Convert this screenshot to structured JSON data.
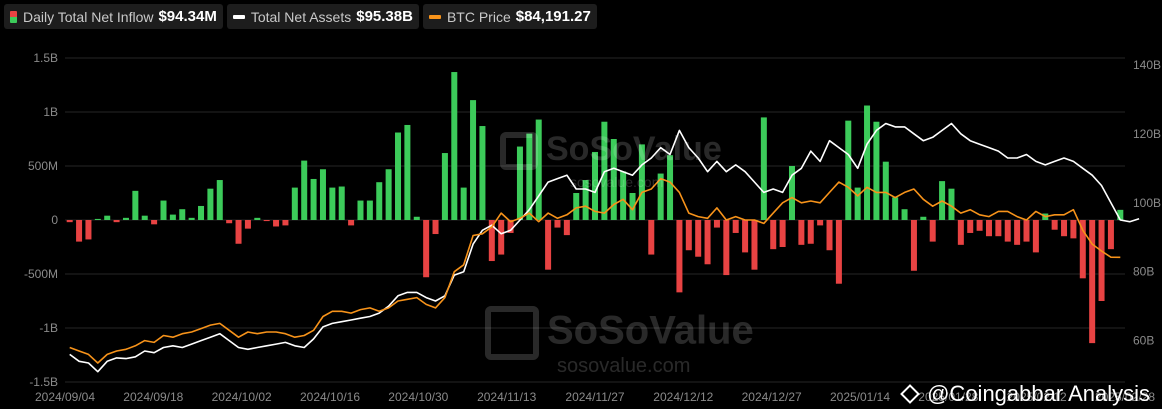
{
  "legend": [
    {
      "label": "Daily Total Net Inflow",
      "value": "$94.34M",
      "color": "#3ccb5a"
    },
    {
      "label": "Total Net Assets",
      "value": "$95.38B",
      "color": "#ffffff"
    },
    {
      "label": "BTC Price",
      "value": "$84,191.27",
      "color": "#f7931a"
    }
  ],
  "watermark": {
    "brand": "SoSoValue",
    "site": "sosovalue.com"
  },
  "credit": "@Coingabbar Analysis",
  "chart_data": {
    "type": "bar",
    "x_ticks": [
      "2024/09/04",
      "2024/09/18",
      "2024/10/02",
      "2024/10/16",
      "2024/10/30",
      "2024/11/13",
      "2024/11/27",
      "2024/12/12",
      "2024/12/27",
      "2025/01/14",
      "2025/01/28",
      "2025/02/12",
      "2025/02/28"
    ],
    "y_left": {
      "ticks": [
        "-1.5B",
        "-1B",
        "-500M",
        "0",
        "500M",
        "1B",
        "1.5B"
      ],
      "range_millions": [
        -1500,
        1500
      ]
    },
    "y_right": {
      "ticks": [
        "60B",
        "80B",
        "100B",
        "120B",
        "140B"
      ],
      "range_billions": [
        48,
        142
      ]
    },
    "colors": {
      "positive": "#3ccb5a",
      "negative": "#e84343",
      "assets": "#ffffff",
      "price": "#f7931a"
    },
    "series": [
      {
        "name": "Daily Total Net Inflow",
        "unit": "M USD",
        "values": [
          -20,
          -200,
          -180,
          10,
          40,
          -20,
          20,
          270,
          40,
          -40,
          180,
          50,
          100,
          20,
          130,
          290,
          370,
          -30,
          -220,
          -80,
          20,
          -10,
          -60,
          -50,
          300,
          550,
          380,
          470,
          300,
          310,
          -50,
          180,
          180,
          350,
          470,
          810,
          880,
          30,
          -530,
          -130,
          620,
          1370,
          300,
          1110,
          870,
          -380,
          -320,
          -120,
          680,
          800,
          930,
          -460,
          -70,
          -140,
          250,
          370,
          630,
          910,
          750,
          450,
          250,
          700,
          -320,
          430,
          600,
          -670,
          -280,
          -340,
          -410,
          -70,
          -510,
          -120,
          -300,
          -460,
          950,
          -270,
          -250,
          500,
          -230,
          -220,
          -50,
          -280,
          -590,
          920,
          300,
          1060,
          910,
          540,
          210,
          100,
          -470,
          30,
          -200,
          360,
          290,
          -230,
          -120,
          -100,
          -150,
          -150,
          -200,
          -230,
          -200,
          -300,
          60,
          -90,
          -150,
          -170,
          -540,
          -1140,
          -750,
          -270,
          94
        ]
      },
      {
        "name": "Total Net Assets",
        "unit": "B USD",
        "values": [
          56,
          54,
          53.5,
          51,
          54,
          55,
          54.8,
          55.3,
          57,
          56.5,
          58,
          58.5,
          58,
          59,
          60,
          61,
          62,
          60,
          58,
          57.5,
          58,
          58.5,
          59,
          59.5,
          58.5,
          58,
          60.5,
          64,
          65,
          65.5,
          66,
          66.5,
          67,
          68,
          70,
          73,
          74,
          74,
          72.5,
          71.5,
          73,
          79,
          80,
          88,
          92,
          93.5,
          91,
          92,
          95,
          98,
          102,
          106,
          107,
          108,
          104,
          104,
          103,
          109,
          110,
          109,
          108,
          111,
          113,
          116,
          114,
          121,
          116,
          113,
          109,
          112,
          109,
          111,
          109,
          106,
          103,
          104,
          103,
          108,
          110,
          115,
          112,
          118,
          116,
          114,
          110,
          117,
          121,
          123,
          122,
          122,
          120,
          118,
          119,
          121,
          123,
          120,
          118,
          117,
          116,
          115,
          113,
          113,
          114,
          112,
          111,
          112,
          113,
          112,
          110,
          108,
          105,
          100,
          95,
          94.5,
          95.38
        ]
      },
      {
        "name": "BTC Price",
        "unit": "K USD",
        "values": [
          58,
          57,
          56,
          53.5,
          56,
          57,
          57.5,
          58.5,
          60,
          59.5,
          61.5,
          61,
          62,
          62.5,
          63.5,
          64.5,
          65,
          63,
          61,
          62.5,
          62,
          62.5,
          62.5,
          62,
          61,
          61.5,
          63,
          67,
          68.5,
          68.5,
          68,
          69,
          69.5,
          68.5,
          69.5,
          71.5,
          72,
          72.5,
          70.5,
          69.5,
          72.5,
          80,
          82,
          90.5,
          91,
          93,
          97,
          94.5,
          95.5,
          97,
          94.5,
          97,
          95.5,
          96.5,
          98.5,
          99,
          97.5,
          97,
          99.5,
          101,
          98,
          103,
          104,
          107,
          106,
          103,
          97,
          96,
          95.5,
          98.5,
          95,
          96,
          95,
          95,
          94,
          97,
          100,
          101.5,
          100,
          100.5,
          100,
          103,
          106,
          104.5,
          102,
          104.5,
          103,
          103,
          101.5,
          103,
          104,
          101,
          99,
          100.5,
          99,
          97,
          98,
          96.5,
          96,
          97.5,
          97.5,
          96,
          95,
          97.5,
          96,
          96.5,
          96.5,
          98,
          92,
          88,
          86,
          84.2,
          84.19
        ]
      }
    ]
  }
}
